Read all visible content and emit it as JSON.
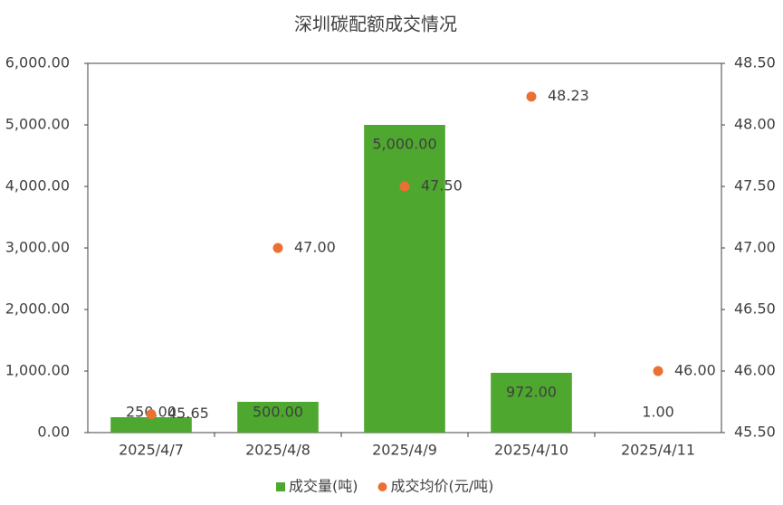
{
  "chart_data": {
    "type": "bar",
    "title": "深圳碳配额成交情况",
    "categories": [
      "2025/4/7",
      "2025/4/8",
      "2025/4/9",
      "2025/4/10",
      "2025/4/11"
    ],
    "series": [
      {
        "name": "成交量(吨)",
        "type": "bar",
        "color": "#4ea72e",
        "values": [
          250,
          500,
          5000,
          972,
          1
        ],
        "value_labels": [
          "250.00",
          "500.00",
          "5,000.00",
          "972.00",
          "1.00"
        ]
      },
      {
        "name": "成交均价(元/吨)",
        "type": "scatter",
        "axis": "y2",
        "color": "#e97132",
        "values": [
          45.65,
          47,
          47.5,
          48.23,
          46
        ],
        "value_labels": [
          "45.65",
          "47.00",
          "47.50",
          "48.23",
          "46.00"
        ]
      }
    ],
    "ylim": [
      0,
      6000
    ],
    "yticks": [
      {
        "value": 0,
        "label": "0.00"
      },
      {
        "value": 1000,
        "label": "1,000.00"
      },
      {
        "value": 2000,
        "label": "2,000.00"
      },
      {
        "value": 3000,
        "label": "3,000.00"
      },
      {
        "value": 4000,
        "label": "4,000.00"
      },
      {
        "value": 5000,
        "label": "5,000.00"
      },
      {
        "value": 6000,
        "label": "6,000.00"
      }
    ],
    "y2lim": [
      45.5,
      48.5
    ],
    "y2ticks": [
      {
        "value": 45.5,
        "label": "45.50"
      },
      {
        "value": 46,
        "label": "46.00"
      },
      {
        "value": 46.5,
        "label": "46.50"
      },
      {
        "value": 47,
        "label": "47.00"
      },
      {
        "value": 47.5,
        "label": "47.50"
      },
      {
        "value": 48,
        "label": "48.00"
      },
      {
        "value": 48.5,
        "label": "48.50"
      }
    ],
    "legend": "bottom"
  }
}
